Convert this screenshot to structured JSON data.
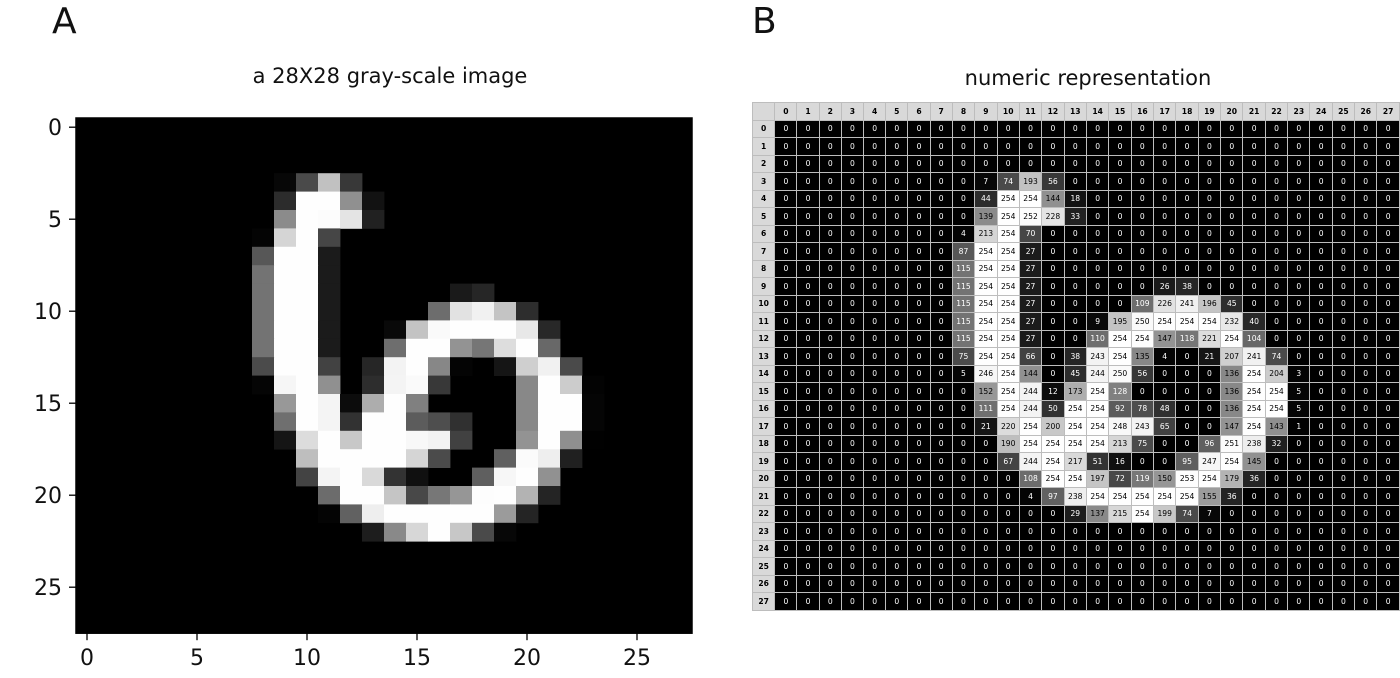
{
  "panel_a": {
    "letter": "A",
    "title": "a 28X28 gray-scale image"
  },
  "panel_b": {
    "letter": "B",
    "title": "numeric representation"
  },
  "chart_data": {
    "type": "heatmap",
    "title": "a 28X28 gray-scale image",
    "x_ticks": [
      0,
      5,
      10,
      15,
      20,
      25
    ],
    "y_ticks": [
      0,
      5,
      10,
      15,
      20,
      25
    ],
    "xlim": [
      -0.5,
      27.5
    ],
    "ylim": [
      27.5,
      -0.5
    ],
    "colormap": "gray",
    "grid_row_labels": [
      "0",
      "1",
      "2",
      "3",
      "4",
      "5",
      "6",
      "7",
      "8",
      "9",
      "10",
      "11",
      "12",
      "13",
      "14",
      "15",
      "16",
      "17",
      "18",
      "19",
      "20",
      "21",
      "22",
      "23",
      "24",
      "25",
      "26",
      "27"
    ],
    "grid_col_labels": [
      "0",
      "1",
      "2",
      "3",
      "4",
      "5",
      "6",
      "7",
      "8",
      "9",
      "10",
      "11",
      "12",
      "13",
      "14",
      "15",
      "16",
      "17",
      "18",
      "19",
      "20",
      "21",
      "22",
      "23",
      "24",
      "25",
      "26",
      "27"
    ],
    "pixels": [
      [
        0,
        0,
        0,
        0,
        0,
        0,
        0,
        0,
        0,
        0,
        0,
        0,
        0,
        0,
        0,
        0,
        0,
        0,
        0,
        0,
        0,
        0,
        0,
        0,
        0,
        0,
        0,
        0
      ],
      [
        0,
        0,
        0,
        0,
        0,
        0,
        0,
        0,
        0,
        0,
        0,
        0,
        0,
        0,
        0,
        0,
        0,
        0,
        0,
        0,
        0,
        0,
        0,
        0,
        0,
        0,
        0,
        0
      ],
      [
        0,
        0,
        0,
        0,
        0,
        0,
        0,
        0,
        0,
        0,
        0,
        0,
        0,
        0,
        0,
        0,
        0,
        0,
        0,
        0,
        0,
        0,
        0,
        0,
        0,
        0,
        0,
        0
      ],
      [
        0,
        0,
        0,
        0,
        0,
        0,
        0,
        0,
        0,
        7,
        74,
        193,
        56,
        0,
        0,
        0,
        0,
        0,
        0,
        0,
        0,
        0,
        0,
        0,
        0,
        0,
        0,
        0
      ],
      [
        0,
        0,
        0,
        0,
        0,
        0,
        0,
        0,
        0,
        44,
        254,
        254,
        144,
        18,
        0,
        0,
        0,
        0,
        0,
        0,
        0,
        0,
        0,
        0,
        0,
        0,
        0,
        0
      ],
      [
        0,
        0,
        0,
        0,
        0,
        0,
        0,
        0,
        0,
        139,
        254,
        252,
        228,
        33,
        0,
        0,
        0,
        0,
        0,
        0,
        0,
        0,
        0,
        0,
        0,
        0,
        0,
        0
      ],
      [
        0,
        0,
        0,
        0,
        0,
        0,
        0,
        0,
        4,
        213,
        254,
        70,
        0,
        0,
        0,
        0,
        0,
        0,
        0,
        0,
        0,
        0,
        0,
        0,
        0,
        0,
        0,
        0
      ],
      [
        0,
        0,
        0,
        0,
        0,
        0,
        0,
        0,
        87,
        254,
        254,
        27,
        0,
        0,
        0,
        0,
        0,
        0,
        0,
        0,
        0,
        0,
        0,
        0,
        0,
        0,
        0,
        0
      ],
      [
        0,
        0,
        0,
        0,
        0,
        0,
        0,
        0,
        115,
        254,
        254,
        27,
        0,
        0,
        0,
        0,
        0,
        0,
        0,
        0,
        0,
        0,
        0,
        0,
        0,
        0,
        0,
        0
      ],
      [
        0,
        0,
        0,
        0,
        0,
        0,
        0,
        0,
        115,
        254,
        254,
        27,
        0,
        0,
        0,
        0,
        0,
        26,
        38,
        0,
        0,
        0,
        0,
        0,
        0,
        0,
        0,
        0
      ],
      [
        0,
        0,
        0,
        0,
        0,
        0,
        0,
        0,
        115,
        254,
        254,
        27,
        0,
        0,
        0,
        0,
        109,
        226,
        241,
        196,
        45,
        0,
        0,
        0,
        0,
        0,
        0,
        0
      ],
      [
        0,
        0,
        0,
        0,
        0,
        0,
        0,
        0,
        115,
        254,
        254,
        27,
        0,
        0,
        9,
        195,
        250,
        254,
        254,
        254,
        232,
        40,
        0,
        0,
        0,
        0,
        0,
        0
      ],
      [
        0,
        0,
        0,
        0,
        0,
        0,
        0,
        0,
        115,
        254,
        254,
        27,
        0,
        0,
        110,
        254,
        254,
        147,
        118,
        221,
        254,
        104,
        0,
        0,
        0,
        0,
        0,
        0
      ],
      [
        0,
        0,
        0,
        0,
        0,
        0,
        0,
        0,
        75,
        254,
        254,
        66,
        0,
        38,
        243,
        254,
        135,
        4,
        0,
        21,
        207,
        241,
        74,
        0,
        0,
        0,
        0,
        0
      ],
      [
        0,
        0,
        0,
        0,
        0,
        0,
        0,
        0,
        5,
        246,
        254,
        144,
        0,
        45,
        244,
        250,
        56,
        0,
        0,
        0,
        136,
        254,
        204,
        3,
        0,
        0,
        0,
        0
      ],
      [
        0,
        0,
        0,
        0,
        0,
        0,
        0,
        0,
        0,
        152,
        254,
        244,
        12,
        173,
        254,
        128,
        0,
        0,
        0,
        0,
        136,
        254,
        254,
        5,
        0,
        0,
        0,
        0
      ],
      [
        0,
        0,
        0,
        0,
        0,
        0,
        0,
        0,
        0,
        111,
        254,
        244,
        50,
        254,
        254,
        92,
        78,
        48,
        0,
        0,
        136,
        254,
        254,
        5,
        0,
        0,
        0,
        0
      ],
      [
        0,
        0,
        0,
        0,
        0,
        0,
        0,
        0,
        0,
        21,
        220,
        254,
        200,
        254,
        254,
        248,
        243,
        65,
        0,
        0,
        147,
        254,
        143,
        1,
        0,
        0,
        0,
        0
      ],
      [
        0,
        0,
        0,
        0,
        0,
        0,
        0,
        0,
        0,
        0,
        190,
        254,
        254,
        254,
        254,
        213,
        75,
        0,
        0,
        96,
        251,
        238,
        32,
        0,
        0,
        0,
        0,
        0
      ],
      [
        0,
        0,
        0,
        0,
        0,
        0,
        0,
        0,
        0,
        0,
        67,
        244,
        254,
        217,
        51,
        16,
        0,
        0,
        95,
        247,
        254,
        145,
        0,
        0,
        0,
        0,
        0,
        0
      ],
      [
        0,
        0,
        0,
        0,
        0,
        0,
        0,
        0,
        0,
        0,
        0,
        108,
        254,
        254,
        197,
        72,
        119,
        150,
        253,
        254,
        179,
        36,
        0,
        0,
        0,
        0,
        0,
        0
      ],
      [
        0,
        0,
        0,
        0,
        0,
        0,
        0,
        0,
        0,
        0,
        0,
        4,
        97,
        238,
        254,
        254,
        254,
        254,
        254,
        155,
        36,
        0,
        0,
        0,
        0,
        0,
        0,
        0
      ],
      [
        0,
        0,
        0,
        0,
        0,
        0,
        0,
        0,
        0,
        0,
        0,
        0,
        0,
        29,
        137,
        215,
        254,
        199,
        74,
        7,
        0,
        0,
        0,
        0,
        0,
        0,
        0,
        0
      ],
      [
        0,
        0,
        0,
        0,
        0,
        0,
        0,
        0,
        0,
        0,
        0,
        0,
        0,
        0,
        0,
        0,
        0,
        0,
        0,
        0,
        0,
        0,
        0,
        0,
        0,
        0,
        0,
        0
      ],
      [
        0,
        0,
        0,
        0,
        0,
        0,
        0,
        0,
        0,
        0,
        0,
        0,
        0,
        0,
        0,
        0,
        0,
        0,
        0,
        0,
        0,
        0,
        0,
        0,
        0,
        0,
        0,
        0
      ],
      [
        0,
        0,
        0,
        0,
        0,
        0,
        0,
        0,
        0,
        0,
        0,
        0,
        0,
        0,
        0,
        0,
        0,
        0,
        0,
        0,
        0,
        0,
        0,
        0,
        0,
        0,
        0,
        0
      ],
      [
        0,
        0,
        0,
        0,
        0,
        0,
        0,
        0,
        0,
        0,
        0,
        0,
        0,
        0,
        0,
        0,
        0,
        0,
        0,
        0,
        0,
        0,
        0,
        0,
        0,
        0,
        0,
        0
      ],
      [
        0,
        0,
        0,
        0,
        0,
        0,
        0,
        0,
        0,
        0,
        0,
        0,
        0,
        0,
        0,
        0,
        0,
        0,
        0,
        0,
        0,
        0,
        0,
        0,
        0,
        0,
        0,
        0
      ]
    ]
  }
}
